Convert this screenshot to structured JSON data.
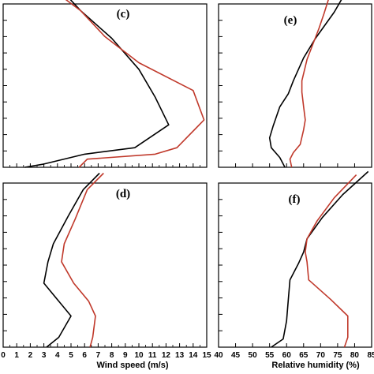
{
  "chart_data": [
    {
      "type": "line",
      "panel_label": "(c)",
      "xlabel": "",
      "xlim": [
        0,
        15
      ],
      "ylim": [
        0,
        10
      ],
      "series": [
        {
          "color": "#000000",
          "points": [
            [
              1.6,
              0
            ],
            [
              3.0,
              0.2
            ],
            [
              6.0,
              0.8
            ],
            [
              9.7,
              1.2
            ],
            [
              12.2,
              2.6
            ],
            [
              11.2,
              4.3
            ],
            [
              10.0,
              6.0
            ],
            [
              8.0,
              7.9
            ],
            [
              5.7,
              9.6
            ],
            [
              4.8,
              10.4
            ]
          ]
        },
        {
          "color": "#c0392b",
          "points": [
            [
              5.6,
              0
            ],
            [
              6.2,
              0.5
            ],
            [
              11.2,
              0.8
            ],
            [
              12.8,
              1.2
            ],
            [
              14.8,
              2.9
            ],
            [
              14.0,
              4.7
            ],
            [
              10.0,
              6.4
            ],
            [
              7.5,
              8.0
            ],
            [
              5.7,
              9.6
            ],
            [
              4.4,
              10.4
            ]
          ]
        }
      ]
    },
    {
      "type": "line",
      "panel_label": "(e)",
      "xlabel": "",
      "xlim": [
        40,
        85
      ],
      "ylim": [
        0,
        10
      ],
      "series": [
        {
          "color": "#000000",
          "points": [
            [
              59.5,
              0
            ],
            [
              58.0,
              0.6
            ],
            [
              55.5,
              1.2
            ],
            [
              55.0,
              1.8
            ],
            [
              56.0,
              2.5
            ],
            [
              58.0,
              3.7
            ],
            [
              60.5,
              4.5
            ],
            [
              62.0,
              5.3
            ],
            [
              65.0,
              6.7
            ],
            [
              68.5,
              7.9
            ],
            [
              74.0,
              9.5
            ],
            [
              76.5,
              10.4
            ]
          ]
        },
        {
          "color": "#c0392b",
          "points": [
            [
              61.5,
              0
            ],
            [
              61.0,
              0.5
            ],
            [
              62.0,
              0.9
            ],
            [
              64.0,
              1.4
            ],
            [
              65.0,
              2.3
            ],
            [
              65.5,
              2.9
            ],
            [
              65.0,
              3.7
            ],
            [
              64.5,
              4.6
            ],
            [
              64.5,
              5.3
            ],
            [
              66.0,
              6.6
            ],
            [
              69.5,
              8.5
            ],
            [
              71.0,
              9.4
            ],
            [
              72.5,
              10.4
            ]
          ]
        }
      ]
    },
    {
      "type": "line",
      "panel_label": "(d)",
      "xlabel": "Wind speed (m/s)",
      "xlim": [
        0,
        15
      ],
      "ylim": [
        0,
        10
      ],
      "series": [
        {
          "color": "#000000",
          "points": [
            [
              3.2,
              0
            ],
            [
              4.1,
              0.6
            ],
            [
              5.0,
              1.9
            ],
            [
              4.1,
              2.8
            ],
            [
              3.0,
              3.9
            ],
            [
              3.3,
              5.2
            ],
            [
              3.7,
              6.3
            ],
            [
              4.8,
              8.0
            ],
            [
              5.9,
              9.6
            ],
            [
              7.1,
              10.6
            ]
          ]
        },
        {
          "color": "#c0392b",
          "points": [
            [
              6.4,
              0
            ],
            [
              6.6,
              0.6
            ],
            [
              6.8,
              1.9
            ],
            [
              6.3,
              2.8
            ],
            [
              5.2,
              3.9
            ],
            [
              4.3,
              5.2
            ],
            [
              4.5,
              6.3
            ],
            [
              5.3,
              7.8
            ],
            [
              6.2,
              9.6
            ],
            [
              7.4,
              10.6
            ]
          ]
        }
      ]
    },
    {
      "type": "line",
      "panel_label": "(f)",
      "xlabel": "Relative humidity (%)",
      "xlim": [
        40,
        85
      ],
      "ylim": [
        0,
        10
      ],
      "series": [
        {
          "color": "#000000",
          "points": [
            [
              55.5,
              0
            ],
            [
              59.0,
              0.5
            ],
            [
              60.0,
              1.6
            ],
            [
              60.5,
              2.9
            ],
            [
              61.0,
              4.1
            ],
            [
              63.5,
              5.1
            ],
            [
              65.0,
              5.8
            ],
            [
              66.0,
              6.6
            ],
            [
              70.5,
              7.9
            ],
            [
              76.5,
              9.3
            ],
            [
              84.0,
              10.7
            ]
          ]
        },
        {
          "color": "#c0392b",
          "points": [
            [
              77.0,
              0
            ],
            [
              78.0,
              0.6
            ],
            [
              78.0,
              1.9
            ],
            [
              73.0,
              2.9
            ],
            [
              66.5,
              4.1
            ],
            [
              66.0,
              5.2
            ],
            [
              65.5,
              5.8
            ],
            [
              66.0,
              6.6
            ],
            [
              69.0,
              7.7
            ],
            [
              74.0,
              9.1
            ],
            [
              80.5,
              10.5
            ]
          ]
        }
      ]
    }
  ],
  "axes": {
    "wind_ticks": [
      "0",
      "1",
      "2",
      "3",
      "4",
      "5",
      "6",
      "7",
      "8",
      "9",
      "10",
      "11",
      "12",
      "13",
      "14",
      "15"
    ],
    "rh_ticks": [
      "40",
      "45",
      "50",
      "55",
      "60",
      "65",
      "70",
      "75",
      "80",
      "85"
    ]
  }
}
